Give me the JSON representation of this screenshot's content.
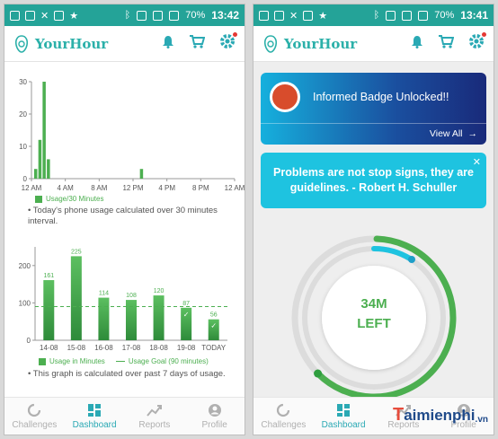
{
  "status_bar": {
    "battery": "70%",
    "time_left": "13:42",
    "time_right": "13:41"
  },
  "app": {
    "name": "YourHour"
  },
  "nav": [
    {
      "label": "Challenges",
      "icon": "challenges-ring-icon"
    },
    {
      "label": "Dashboard",
      "icon": "dashboard-grid-icon"
    },
    {
      "label": "Reports",
      "icon": "reports-trend-icon"
    },
    {
      "label": "Profile",
      "icon": "profile-person-icon"
    }
  ],
  "hourly_chart": {
    "chart_data": {
      "type": "bar",
      "y_ticks": [
        "30",
        "20",
        "10",
        "0"
      ],
      "ylim": [
        0,
        30
      ],
      "x_ticks": [
        "12 AM",
        "4 AM",
        "8 AM",
        "12 PM",
        "4 PM",
        "8 PM",
        "12 AM"
      ],
      "bars": [
        {
          "hour": 0.5,
          "value": 3
        },
        {
          "hour": 1.0,
          "value": 12
        },
        {
          "hour": 1.5,
          "value": 30
        },
        {
          "hour": 2.0,
          "value": 6
        },
        {
          "hour": 13.0,
          "value": 3
        }
      ],
      "legend": "Usage/30 Minutes"
    },
    "note": "• Today's phone usage calculated over 30 minutes interval."
  },
  "weekly_chart": {
    "chart_data": {
      "type": "bar",
      "y_ticks": [
        "200",
        "100",
        "0"
      ],
      "ylim": [
        0,
        250
      ],
      "categories": [
        "14-08",
        "15-08",
        "16-08",
        "17-08",
        "18-08",
        "19-08",
        "TODAY"
      ],
      "values": [
        161,
        225,
        114,
        108,
        120,
        87,
        56
      ],
      "goal": 90,
      "legend_bars": "Usage in Minutes",
      "legend_goal": "Usage Goal (90 minutes)"
    },
    "note": "• This graph is calculated over past 7 days of usage."
  },
  "badge_card": {
    "title": "Informed Badge Unlocked!!",
    "view_all": "View All"
  },
  "quote": {
    "text": "Problems are not stop signs, they are guidelines. - Robert H. Schuller",
    "close": "✕"
  },
  "ring": {
    "line1": "34M",
    "line2": "LEFT",
    "progress": 0.62,
    "color": "#4caf50"
  },
  "watermark": {
    "t": "T",
    "rest": "aimienphi",
    "vn": ".vn"
  },
  "colors": {
    "teal": "#24a398",
    "green": "#4caf50",
    "active_nav": "#2aa9b4"
  }
}
